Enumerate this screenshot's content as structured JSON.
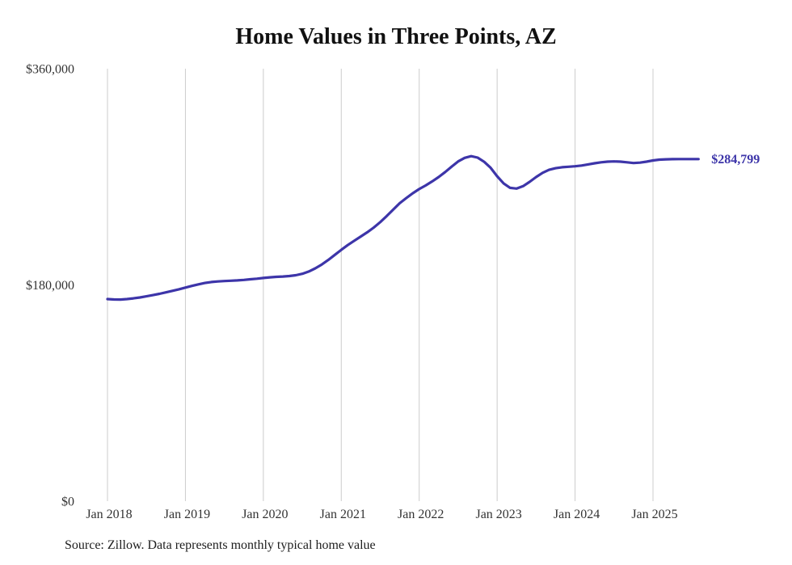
{
  "page": {
    "background": "#ffffff",
    "text_color": "#111111",
    "gridline_color": "#cccccc"
  },
  "chart_data": {
    "type": "line",
    "title": "Home Values in Three Points, AZ",
    "xlabel": "",
    "ylabel": "",
    "ylim": [
      0,
      360000
    ],
    "y_ticks": [
      0,
      180000,
      360000
    ],
    "y_tick_labels": [
      "$0",
      "$180,000",
      "$360,000"
    ],
    "x_tick_labels": [
      "Jan 2018",
      "Jan 2019",
      "Jan 2020",
      "Jan 2021",
      "Jan 2022",
      "Jan 2023",
      "Jan 2024",
      "Jan 2025"
    ],
    "x_start": "Jan 2018",
    "x_interval": "month",
    "grid": "vertical-only",
    "legend": "none",
    "end_label": "$284,799",
    "series": [
      {
        "name": "Monthly typical home value",
        "color": "#3d35a9",
        "values": [
          168200,
          167900,
          167800,
          168200,
          168800,
          169600,
          170500,
          171500,
          172600,
          173800,
          175100,
          176400,
          177800,
          179200,
          180500,
          181600,
          182400,
          182900,
          183200,
          183500,
          183800,
          184200,
          184700,
          185200,
          185800,
          186300,
          186700,
          187000,
          187400,
          188100,
          189300,
          191200,
          193800,
          197000,
          200800,
          205000,
          209200,
          213200,
          216800,
          220300,
          223800,
          227800,
          232300,
          237300,
          242800,
          248000,
          252300,
          256300,
          259800,
          262800,
          266200,
          269800,
          274000,
          278500,
          282800,
          285800,
          287200,
          286000,
          282500,
          277500,
          270500,
          264500,
          260800,
          260200,
          262200,
          265800,
          269800,
          273300,
          275800,
          277200,
          278000,
          278400,
          278800,
          279400,
          280300,
          281300,
          282100,
          282600,
          282800,
          282600,
          282100,
          281500,
          281800,
          282600,
          283600,
          284300,
          284600,
          284700,
          284750,
          284780,
          284790,
          284799
        ]
      }
    ],
    "source_note": "Source: Zillow. Data represents monthly typical home value"
  }
}
